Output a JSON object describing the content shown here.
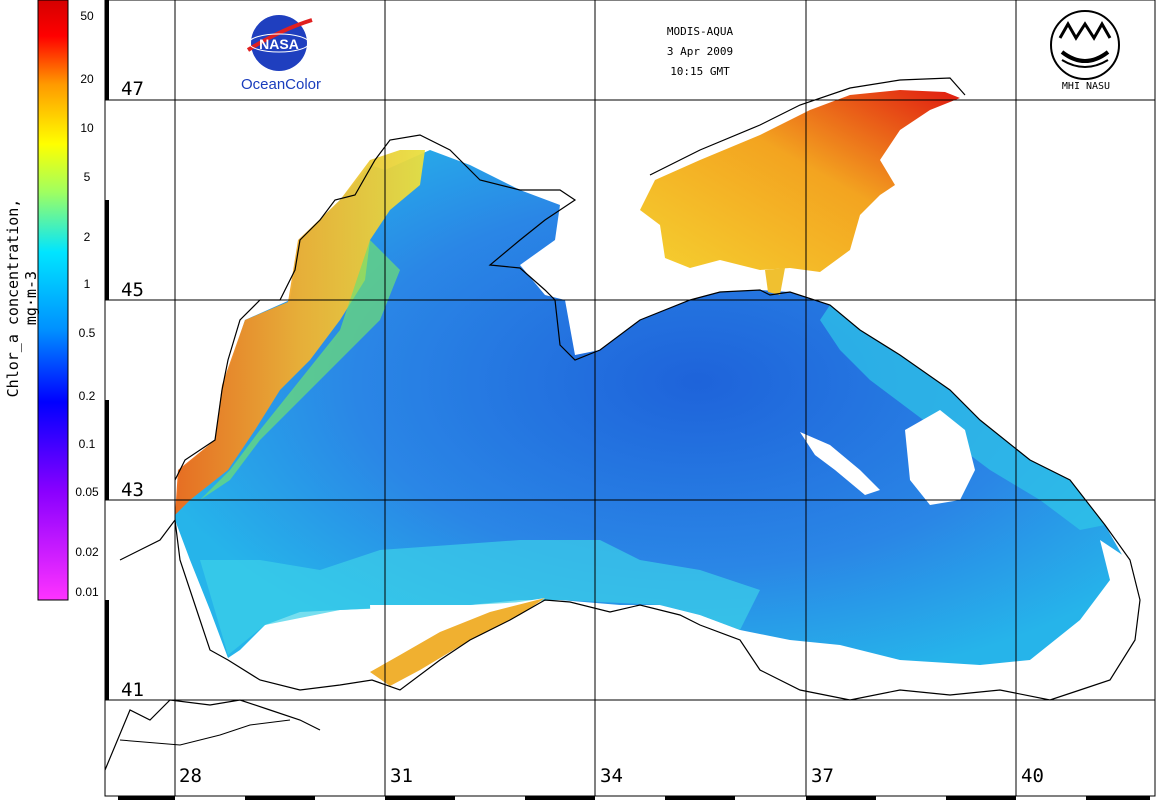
{
  "header": {
    "sensor": "MODIS-AQUA",
    "date": "3 Apr 2009",
    "time": "10:15 GMT"
  },
  "logos": {
    "nasa": {
      "emblem_text": "NASA",
      "caption": "OceanColor",
      "icon": "nasa-meatball-icon"
    },
    "mhi": {
      "caption": "MHI NASU",
      "icon": "mhi-emblem-icon"
    }
  },
  "colorbar": {
    "title": "Chlor_a concentration, mg·m-3",
    "ticks": [
      "50",
      "20",
      "10",
      "5",
      "2",
      "1",
      "0.5",
      "0.2",
      "0.1",
      "0.05",
      "0.02",
      "0.01"
    ],
    "scale": "log",
    "range": [
      0.01,
      60
    ],
    "colors": [
      "#ff33ff",
      "#8a00ff",
      "#0000ff",
      "#0090ff",
      "#00e5ff",
      "#a0ff60",
      "#ffff00",
      "#ff9900",
      "#ff0000",
      "#d40000"
    ]
  },
  "latitudes": [
    "47",
    "45",
    "43",
    "41"
  ],
  "longitudes": [
    "28",
    "31",
    "34",
    "37",
    "40"
  ],
  "colors": {
    "sea_low": "#2a6fe0",
    "sea_mid": "#1fb0e8",
    "shelf_high": "#f7c030",
    "coast_max": "#e02010",
    "land": "#ffffff",
    "coastline": "#000000"
  }
}
